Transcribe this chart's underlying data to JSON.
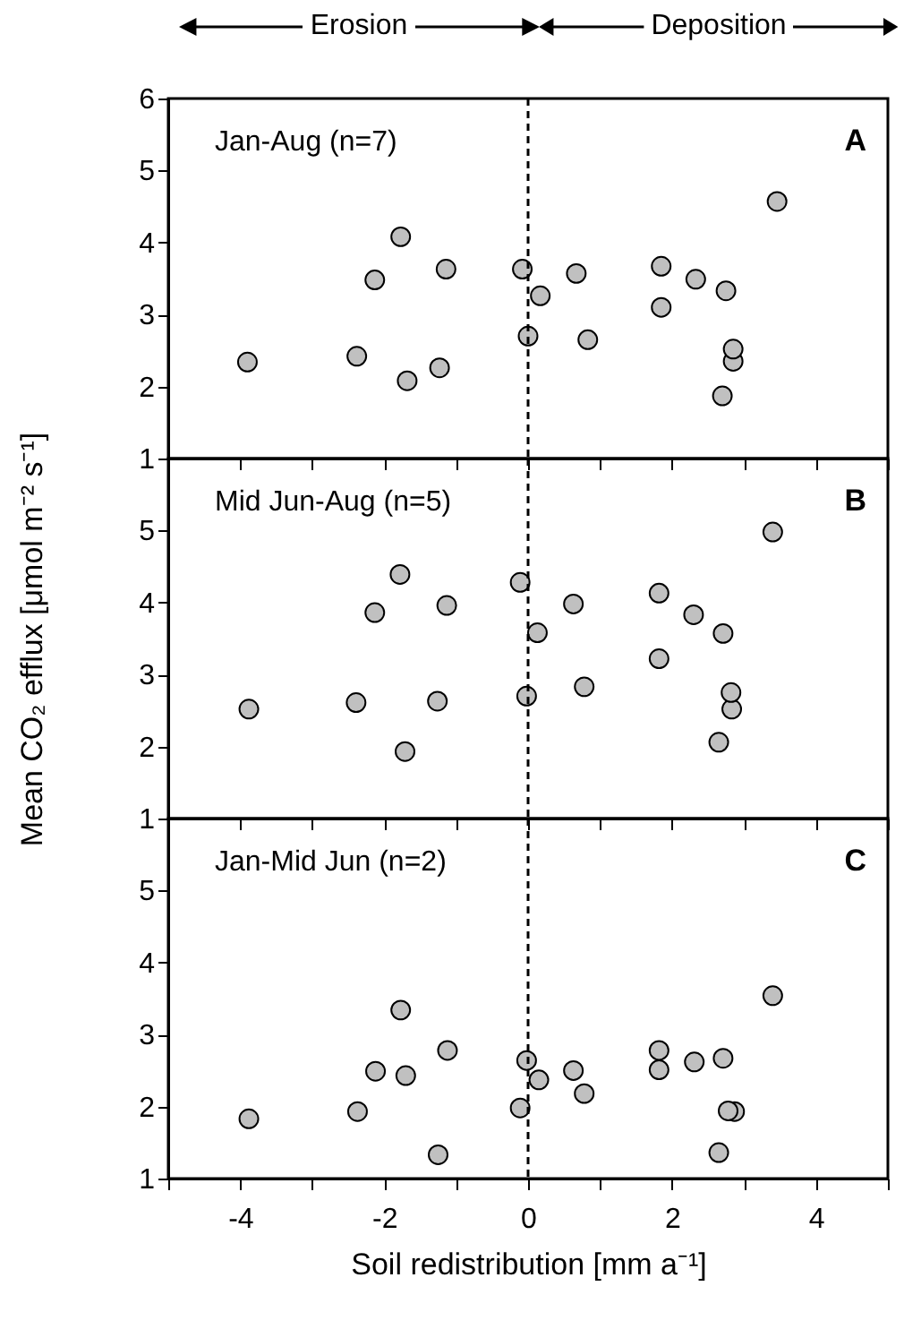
{
  "chart_data": [
    {
      "type": "scatter",
      "annotations": [
        "Erosion",
        "Deposition",
        "Jan-Aug (n=7)",
        "A"
      ],
      "tick_labels": "y",
      "marker": "circle",
      "xlim": [
        -5,
        5
      ],
      "xticks": [
        {
          "value": -5,
          "label": null
        },
        -4,
        {
          "value": -3,
          "label": null
        },
        -2,
        {
          "value": -1,
          "label": null
        },
        0,
        {
          "value": 1,
          "label": null
        },
        2,
        {
          "value": 3,
          "label": null
        },
        4,
        {
          "value": 5,
          "label": null
        }
      ],
      "ylim": [
        1,
        6
      ],
      "yticks": [
        1,
        2,
        3,
        4,
        5,
        6
      ],
      "ref_lines": [
        {
          "axis": "x",
          "value": 0,
          "line_style": "dashed",
          "color": "#000000"
        }
      ],
      "x": [
        -3.9,
        -2.38,
        -2.13,
        -1.77,
        -1.68,
        -1.23,
        -1.14,
        -0.08,
        0,
        0.17,
        0.67,
        0.83,
        1.85,
        1.85,
        2.33,
        2.7,
        2.75,
        2.85,
        2.85,
        3.46
      ],
      "series": [
        {
          "color": "#c0c0c0",
          "values": [
            2.34,
            2.42,
            3.48,
            4.08,
            2.08,
            2.26,
            3.63,
            3.63,
            2.7,
            3.26,
            3.57,
            2.65,
            3.67,
            3.1,
            3.49,
            1.87,
            3.33,
            2.35,
            2.52,
            4.57
          ]
        }
      ]
    },
    {
      "type": "scatter",
      "annotations": [
        "Mid Jun-Aug (n=5)",
        "B"
      ],
      "ylabel": "Mean CO₂ efflux [μmol m⁻² s⁻¹]",
      "tick_labels": "y",
      "marker": "circle",
      "xlim": [
        -5,
        5
      ],
      "xticks": [
        {
          "value": -5,
          "label": null
        },
        -4,
        {
          "value": -3,
          "label": null
        },
        -2,
        {
          "value": -1,
          "label": null
        },
        0,
        {
          "value": 1,
          "label": null
        },
        2,
        {
          "value": 3,
          "label": null
        },
        4,
        {
          "value": 5,
          "label": null
        }
      ],
      "ylim": [
        1,
        6
      ],
      "yticks": [
        1,
        2,
        3,
        4,
        5,
        {
          "value": 6,
          "label": null
        }
      ],
      "ref_lines": [
        {
          "axis": "x",
          "value": 0,
          "line_style": "dashed",
          "color": "#000000"
        }
      ],
      "x": [
        -3.88,
        -2.39,
        -2.13,
        -1.78,
        -1.71,
        -1.26,
        -1.13,
        -0.11,
        -0.02,
        0.13,
        0.63,
        0.78,
        1.82,
        1.82,
        2.3,
        2.65,
        2.71,
        2.83,
        2.82,
        3.4
      ],
      "series": [
        {
          "color": "#c0c0c0",
          "values": [
            2.52,
            2.61,
            3.86,
            4.39,
            1.93,
            2.63,
            3.96,
            4.28,
            2.7,
            3.58,
            3.98,
            2.83,
            4.13,
            3.22,
            3.83,
            2.06,
            3.57,
            2.52,
            2.75,
            4.98
          ]
        }
      ]
    },
    {
      "type": "scatter",
      "annotations": [
        "Jan-Mid Jun (n=2)",
        "C"
      ],
      "xlabel": "Soil redistribution [mm a⁻¹]",
      "marker": "circle",
      "xlim": [
        -5,
        5
      ],
      "xticks": [
        {
          "value": -5,
          "label": null
        },
        -4,
        {
          "value": -3,
          "label": null
        },
        -2,
        {
          "value": -1,
          "label": null
        },
        0,
        {
          "value": 1,
          "label": null
        },
        2,
        {
          "value": 3,
          "label": null
        },
        4,
        {
          "value": 5,
          "label": null
        }
      ],
      "ylim": [
        1,
        6
      ],
      "yticks": [
        1,
        2,
        3,
        4,
        5,
        {
          "value": 6,
          "label": null
        }
      ],
      "ref_lines": [
        {
          "axis": "x",
          "value": 0,
          "line_style": "dashed",
          "color": "#000000"
        }
      ],
      "x": [
        -3.88,
        -2.37,
        -2.12,
        -1.77,
        -1.7,
        -1.25,
        -1.12,
        -0.11,
        -0.02,
        0.15,
        0.63,
        0.78,
        1.82,
        1.82,
        2.31,
        2.65,
        2.71,
        2.87,
        2.78,
        3.4
      ],
      "series": [
        {
          "color": "#c0c0c0",
          "values": [
            1.83,
            1.93,
            2.49,
            3.34,
            2.43,
            1.33,
            2.78,
            1.98,
            2.64,
            2.37,
            2.5,
            2.18,
            2.78,
            2.51,
            2.62,
            1.36,
            2.67,
            1.93,
            1.94,
            3.54
          ]
        }
      ]
    }
  ]
}
